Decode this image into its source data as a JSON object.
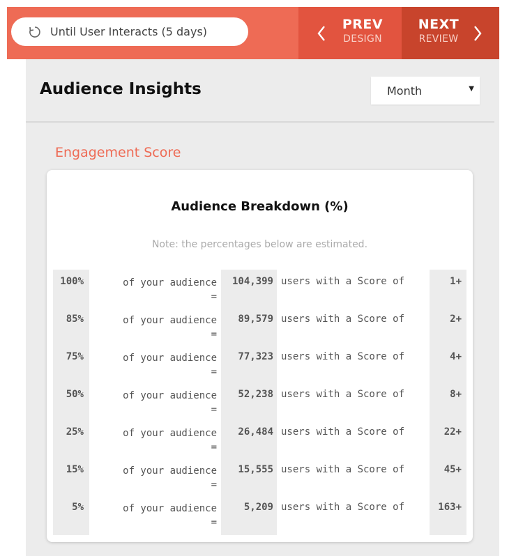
{
  "topbar": {
    "timer_label": "Until User Interacts (5 days)",
    "prev": {
      "main": "PREV",
      "sub": "DESIGN"
    },
    "next": {
      "main": "NEXT",
      "sub": "REVIEW"
    }
  },
  "panel": {
    "title": "Audience Insights",
    "period_select": {
      "value": "Month"
    },
    "section_label": "Engagement Score"
  },
  "card": {
    "title": "Audience Breakdown (%)",
    "note": "Note: the percentages below are estimated."
  },
  "breakdown": {
    "audience_label": "of your audience",
    "equals": "=",
    "users_label": "users with a Score of",
    "rows": [
      {
        "pct": "100%",
        "users": "104,399",
        "score": "1+"
      },
      {
        "pct": "85%",
        "users": "89,579",
        "score": "2+"
      },
      {
        "pct": "75%",
        "users": "77,323",
        "score": "4+"
      },
      {
        "pct": "50%",
        "users": "52,238",
        "score": "8+"
      },
      {
        "pct": "25%",
        "users": "26,484",
        "score": "22+"
      },
      {
        "pct": "15%",
        "users": "15,555",
        "score": "45+"
      },
      {
        "pct": "5%",
        "users": "5,209",
        "score": "163+"
      }
    ]
  },
  "colors": {
    "accent": "#ee6b55",
    "prev_bg": "#e2543f",
    "next_bg": "#c8442c",
    "panel_bg": "#ececec"
  }
}
